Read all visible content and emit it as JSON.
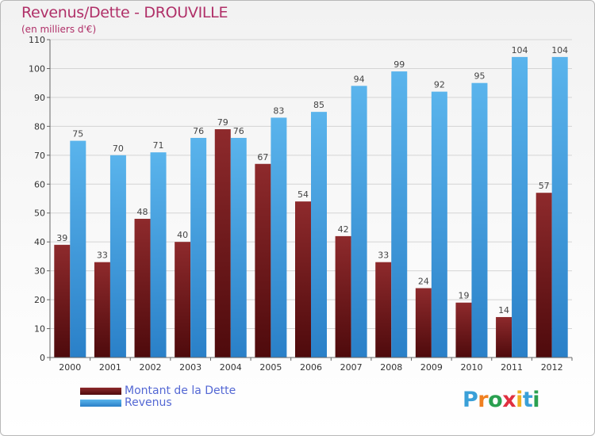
{
  "header": {
    "title": "Revenus/Dette - DROUVILLE",
    "subtitle": "(en milliers d'€)"
  },
  "legend": {
    "items": [
      {
        "label": "Montant de la Dette",
        "color": "#7a1a1c"
      },
      {
        "label": "Revenus",
        "color": "#3a96dc"
      }
    ]
  },
  "logo": {
    "text": "Proxiti",
    "colors": [
      "#3aa0d8",
      "#f08020",
      "#2aa050",
      "#e03040",
      "#f0b020",
      "#3aa0d8",
      "#2aa050"
    ]
  },
  "chart_data": {
    "type": "bar",
    "title": "Revenus/Dette - DROUVILLE",
    "subtitle": "(en milliers d'€)",
    "xlabel": "",
    "ylabel": "",
    "ylim": [
      0,
      110
    ],
    "yticks": [
      0,
      10,
      20,
      30,
      40,
      50,
      60,
      70,
      80,
      90,
      100,
      110
    ],
    "grid": true,
    "legend_position": "bottom-left",
    "categories": [
      "2000",
      "2001",
      "2002",
      "2003",
      "2004",
      "2005",
      "2006",
      "2007",
      "2008",
      "2009",
      "2010",
      "2011",
      "2012"
    ],
    "series": [
      {
        "name": "Montant de la Dette",
        "color": "#7a1a1c",
        "values": [
          39,
          33,
          48,
          40,
          79,
          67,
          54,
          42,
          33,
          24,
          19,
          14,
          57
        ]
      },
      {
        "name": "Revenus",
        "color": "#3a96dc",
        "values": [
          75,
          70,
          71,
          76,
          76,
          83,
          85,
          94,
          99,
          92,
          95,
          104,
          104
        ]
      }
    ]
  }
}
